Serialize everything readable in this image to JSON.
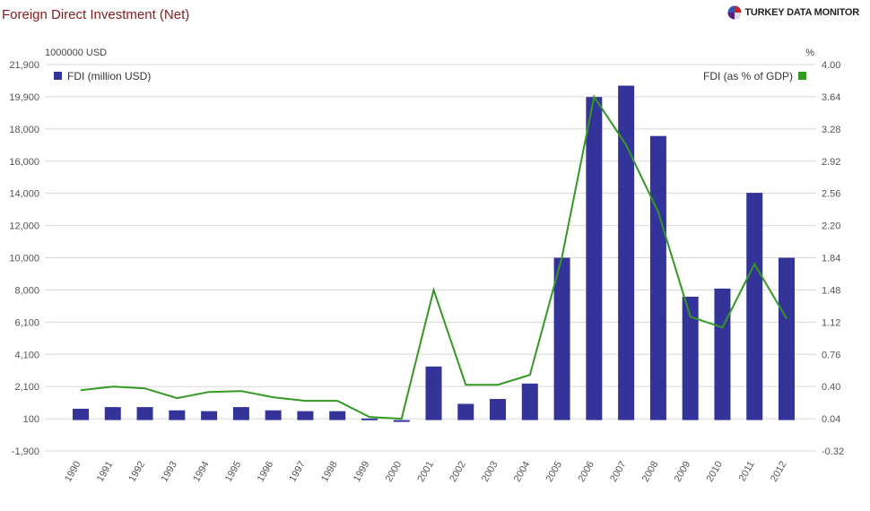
{
  "header": {
    "title": "Foreign Direct Investment (Net)",
    "brand": "TURKEY DATA MONITOR"
  },
  "chart_data": {
    "type": "bar",
    "categories": [
      "1990",
      "1991",
      "1992",
      "1993",
      "1994",
      "1995",
      "1996",
      "1997",
      "1998",
      "1999",
      "2000",
      "2001",
      "2002",
      "2003",
      "2004",
      "2005",
      "2006",
      "2007",
      "2008",
      "2009",
      "2010",
      "2011",
      "2012"
    ],
    "left_axis": {
      "unit": "1000000 USD",
      "ticks": [
        "-1,900",
        "100",
        "2,100",
        "4,100",
        "6,100",
        "8,000",
        "10,000",
        "12,000",
        "14,000",
        "16,000",
        "18,000",
        "19,900",
        "21,900"
      ],
      "range": [
        -1900,
        21900
      ]
    },
    "right_axis": {
      "unit": "%",
      "ticks": [
        "-0.32",
        "0.04",
        "0.40",
        "0.76",
        "1.12",
        "1.48",
        "1.84",
        "2.20",
        "2.56",
        "2.92",
        "3.28",
        "3.64",
        "4.00"
      ],
      "range": [
        -0.32,
        4.0
      ]
    },
    "series": [
      {
        "name": "FDI (million USD)",
        "type": "bar",
        "axis": "left",
        "color": "#333399",
        "values": [
          700,
          800,
          800,
          600,
          550,
          800,
          600,
          550,
          550,
          100,
          0,
          3300,
          1000,
          1300,
          2250,
          10000,
          19900,
          20600,
          17500,
          7600,
          8100,
          14000,
          10000
        ]
      },
      {
        "name": "FDI (as % of GDP)",
        "type": "line",
        "axis": "right",
        "color": "#339922",
        "values": [
          0.36,
          0.4,
          0.38,
          0.27,
          0.34,
          0.35,
          0.28,
          0.24,
          0.24,
          0.06,
          0.04,
          1.48,
          0.42,
          0.42,
          0.53,
          1.85,
          3.64,
          3.1,
          2.35,
          1.18,
          1.06,
          1.77,
          1.16
        ]
      }
    ],
    "grid": true,
    "legend": {
      "left": "top-left",
      "right": "top-right"
    }
  }
}
